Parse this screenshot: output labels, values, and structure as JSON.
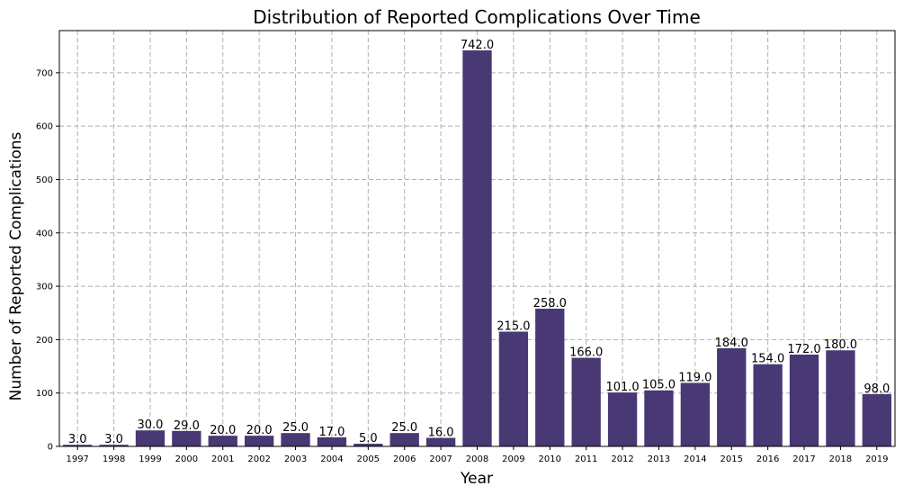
{
  "chart_data": {
    "type": "bar",
    "title": "Distribution of Reported Complications Over Time",
    "xlabel": "Year",
    "ylabel": "Number of Reported Complications",
    "categories": [
      "1997",
      "1998",
      "1999",
      "2000",
      "2001",
      "2002",
      "2003",
      "2004",
      "2005",
      "2006",
      "2007",
      "2008",
      "2009",
      "2010",
      "2011",
      "2012",
      "2013",
      "2014",
      "2015",
      "2016",
      "2017",
      "2018",
      "2019"
    ],
    "values": [
      3,
      3,
      30,
      29,
      20,
      20,
      25,
      17,
      5,
      25,
      16,
      742,
      215,
      258,
      166,
      101,
      105,
      119,
      184,
      154,
      172,
      180,
      98
    ],
    "data_labels": [
      "3.0",
      "3.0",
      "30.0",
      "29.0",
      "20.0",
      "20.0",
      "25.0",
      "17.0",
      "5.0",
      "25.0",
      "16.0",
      "742.0",
      "215.0",
      "258.0",
      "166.0",
      "101.0",
      "105.0",
      "119.0",
      "184.0",
      "154.0",
      "172.0",
      "180.0",
      "98.0"
    ],
    "yticks": [
      0,
      100,
      200,
      300,
      400,
      500,
      600,
      700
    ],
    "ylim": [
      0,
      779
    ],
    "grid": true,
    "bar_color": "#483873"
  }
}
